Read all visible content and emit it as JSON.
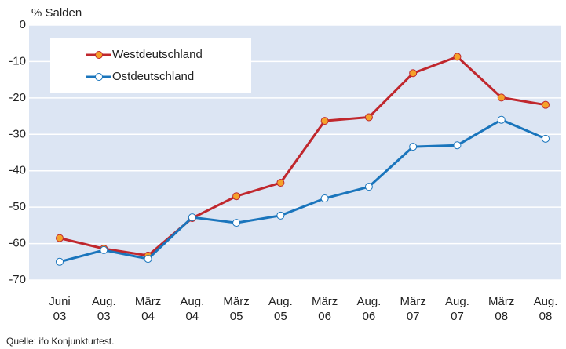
{
  "chart_data": {
    "type": "line",
    "y_label": "% Salden",
    "source": "Quelle: ifo Konjunkturtest.",
    "categories": [
      [
        "Juni",
        "03"
      ],
      [
        "Aug.",
        "03"
      ],
      [
        "März",
        "04"
      ],
      [
        "Aug.",
        "04"
      ],
      [
        "März",
        "05"
      ],
      [
        "Aug.",
        "05"
      ],
      [
        "März",
        "06"
      ],
      [
        "Aug.",
        "06"
      ],
      [
        "März",
        "07"
      ],
      [
        "Aug.",
        "07"
      ],
      [
        "März",
        "08"
      ],
      [
        "Aug.",
        "08"
      ]
    ],
    "series": [
      {
        "name": "Westdeutschland",
        "color": "#c0272d",
        "marker_fill": "#f5a22a",
        "values": [
          -58.5,
          -61.4,
          -63.3,
          -53,
          -47,
          -43.3,
          -26.3,
          -25.3,
          -13.2,
          -8.7,
          -19.9,
          -21.9
        ]
      },
      {
        "name": "Ostdeutschland",
        "color": "#1a75bc",
        "marker_fill": "#ffffff",
        "values": [
          -65,
          -61.8,
          -64.2,
          -52.8,
          -54.3,
          -52.3,
          -47.6,
          -44.4,
          -33.4,
          -33,
          -26,
          -31.2
        ]
      }
    ],
    "ylim": [
      -70,
      0
    ],
    "yticks": [
      0,
      -10,
      -20,
      -30,
      -40,
      -50,
      -60,
      -70
    ],
    "grid": true,
    "legend": "top-left",
    "background": "#dce5f3"
  }
}
